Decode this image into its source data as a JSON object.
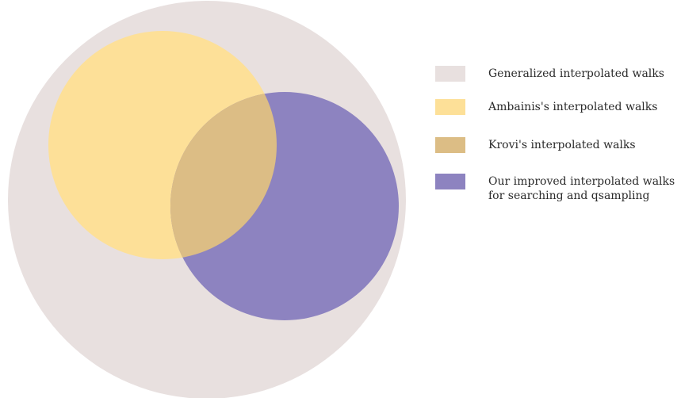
{
  "legend": {
    "items": [
      {
        "label_lines": [
          "Generalized interpolated walks"
        ],
        "color": "#e8e0df"
      },
      {
        "label_lines": [
          "Ambainis's interpolated walks"
        ],
        "color": "#fde098"
      },
      {
        "label_lines": [
          "Krovi's interpolated walks"
        ],
        "color": "#dcbd85"
      },
      {
        "label_lines": [
          "Our improved interpolated walks",
          "for searching and qsampling"
        ],
        "color": "#8d83c0"
      }
    ]
  },
  "colors": {
    "generalized": "#e8e0df",
    "ambainis": "#fde098",
    "krovi": "#dcbd85",
    "improved": "#8d83c0"
  }
}
